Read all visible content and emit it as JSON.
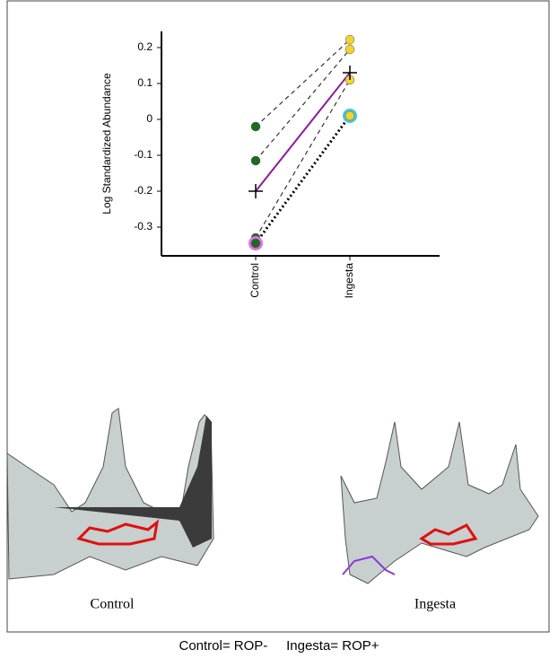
{
  "chart_data": {
    "type": "paired-dot",
    "y_label": "Log Standardized Abundance",
    "categories": [
      "Control",
      "Ingesta"
    ],
    "point_colors": [
      "#1c6b22",
      "#f0d530"
    ],
    "ylim": [
      -0.38,
      0.245
    ],
    "yticks": [
      0.2,
      0.1,
      0,
      -0.1,
      -0.2,
      -0.3
    ],
    "series": [
      {
        "values": [
          -0.02,
          0.222
        ],
        "color": "#333333",
        "style": "dashed"
      },
      {
        "values": [
          -0.115,
          0.195
        ],
        "color": "#333333",
        "style": "dashed"
      },
      {
        "values": [
          -0.33,
          0.11
        ],
        "color": "#333333",
        "style": "dashed"
      },
      {
        "values": [
          -0.345,
          0.01
        ],
        "color": "#000000",
        "style": "dotted",
        "highlight": [
          "#e070e0",
          "#40c8d8"
        ]
      },
      {
        "values": [
          -0.2,
          0.13
        ],
        "color": "#8b1a9a",
        "style": "solid",
        "marker": "cross"
      }
    ]
  },
  "images": [
    {
      "label": "Control"
    },
    {
      "label": "Ingesta"
    }
  ],
  "caption": "Control= ROP-     Ingesta= ROP+"
}
